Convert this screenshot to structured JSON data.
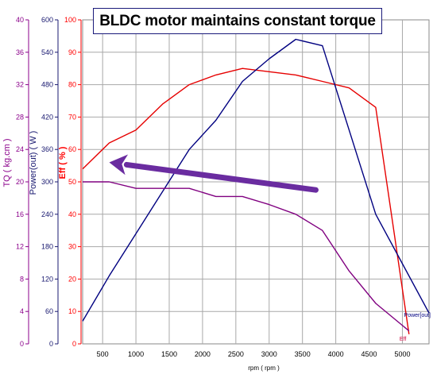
{
  "chart_data": {
    "type": "line",
    "title": "BLDC motor maintains constant torque",
    "xlabel": "rpm ( rpm )",
    "x_ticks": [
      500,
      1000,
      1500,
      2000,
      2500,
      3000,
      3500,
      4000,
      4500,
      5000
    ],
    "xlim": [
      200,
      5400
    ],
    "axes": [
      {
        "label": "TQ ( kg.cm )",
        "color": "#8b008b",
        "ylim": [
          0,
          40
        ],
        "ticks": [
          "0",
          "4",
          "8",
          "12",
          "16",
          "20",
          "24",
          "28",
          "32",
          "36",
          "40"
        ]
      },
      {
        "label": "Power(out) ( W )",
        "color": "#191970",
        "ylim": [
          0,
          600
        ],
        "ticks": [
          "0",
          "60",
          "120",
          "180",
          "240",
          "300",
          "360",
          "420",
          "480",
          "540",
          "600"
        ]
      },
      {
        "label": "Eff ( % )",
        "color": "#ff0000",
        "ylim": [
          0,
          100
        ],
        "ticks": [
          "0",
          "10",
          "20",
          "30",
          "40",
          "50",
          "60",
          "70",
          "80",
          "90",
          "100"
        ]
      }
    ],
    "series": [
      {
        "name": "Eff",
        "axis": 2,
        "color": "#e60000",
        "x": [
          200,
          600,
          1000,
          1400,
          1800,
          2200,
          2600,
          3000,
          3400,
          3800,
          4200,
          4600,
          5100
        ],
        "y": [
          54,
          62,
          66,
          74,
          80,
          83,
          85,
          84,
          83,
          81,
          79,
          73,
          3
        ]
      },
      {
        "name": "Power[out]",
        "axis": 1,
        "color": "#000080",
        "x": [
          200,
          600,
          1000,
          1400,
          1800,
          2200,
          2600,
          3000,
          3400,
          3800,
          4200,
          4600,
          5400
        ],
        "y": [
          42,
          126,
          204,
          282,
          360,
          414,
          486,
          528,
          564,
          552,
          396,
          240,
          57
        ]
      },
      {
        "name": "",
        "axis": 0,
        "color": "#800080",
        "x": [
          200,
          600,
          1000,
          1400,
          1800,
          2200,
          2600,
          3000,
          3400,
          3800,
          4200,
          4600,
          5100
        ],
        "y": [
          20,
          20,
          19.2,
          19.2,
          19.2,
          18.2,
          18.2,
          17.2,
          16,
          14,
          9,
          5,
          1.6
        ]
      }
    ],
    "annotation": {
      "type": "arrow",
      "color": "#6a2ca0",
      "from": [
        3700,
        47.5
      ],
      "to": [
        600,
        56
      ]
    },
    "grid": true
  }
}
